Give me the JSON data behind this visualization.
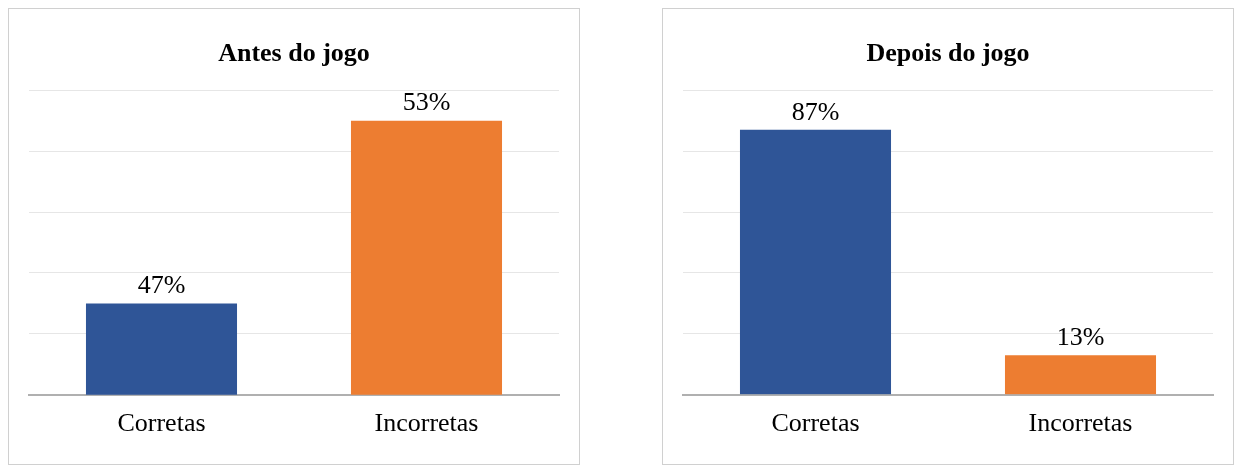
{
  "chart_data": [
    {
      "type": "bar",
      "title": "Antes do jogo",
      "categories": [
        "Corretas",
        "Incorretas"
      ],
      "values": [
        47,
        53
      ],
      "colors": [
        "#2f5597",
        "#ed7d31"
      ],
      "ylim": [
        44,
        54
      ],
      "yticks": [
        44,
        46,
        48,
        50,
        52,
        54
      ],
      "grid": "y",
      "tick_labels": "x",
      "data_labels": true,
      "value_labels": [
        "47%",
        "53%"
      ]
    },
    {
      "type": "bar",
      "title": "Depois do jogo",
      "categories": [
        "Corretas",
        "Incorretas"
      ],
      "values": [
        87,
        13
      ],
      "colors": [
        "#2f5597",
        "#ed7d31"
      ],
      "ylim": [
        0,
        100
      ],
      "yticks": [
        0,
        20,
        40,
        60,
        80,
        100
      ],
      "grid": "y",
      "tick_labels": "x",
      "data_labels": true,
      "value_labels": [
        "87%",
        "13%"
      ]
    }
  ]
}
